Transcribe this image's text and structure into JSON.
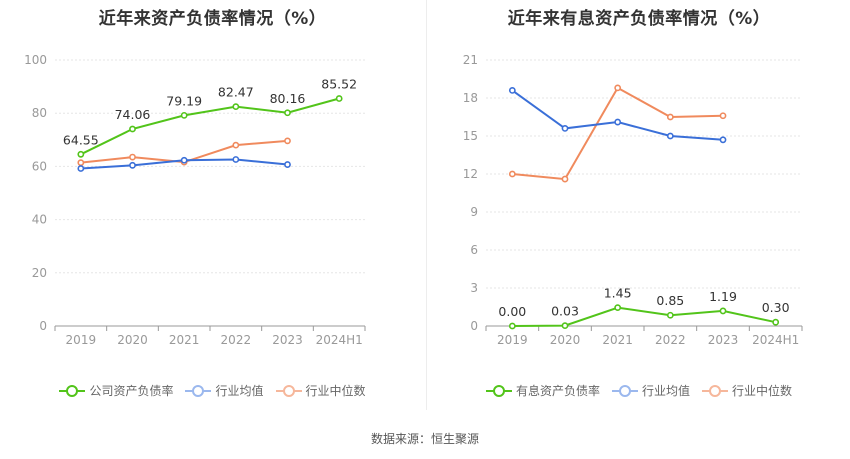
{
  "footer_text": "数据来源：恒生聚源",
  "chart_data": [
    {
      "type": "line",
      "title": "近年来资产负债率情况（%）",
      "categories": [
        "2019",
        "2020",
        "2021",
        "2022",
        "2023",
        "2024H1"
      ],
      "ylim": [
        0,
        100
      ],
      "yticks": [
        "0",
        "20",
        "40",
        "60",
        "80",
        "100"
      ],
      "grid": true,
      "legend_position": "bottom",
      "series": [
        {
          "name": "公司资产负债率",
          "color": "#52c41a",
          "values": [
            64.55,
            74.06,
            79.19,
            82.47,
            80.16,
            85.52
          ],
          "labels": [
            "64.55",
            "74.06",
            "79.19",
            "82.47",
            "80.16",
            "85.52"
          ]
        },
        {
          "name": "行业均值",
          "color": "#3a6fd8",
          "values": [
            59.2,
            60.4,
            62.3,
            62.6,
            60.7,
            null
          ]
        },
        {
          "name": "行业中位数",
          "color": "#f08a5d",
          "values": [
            61.4,
            63.5,
            61.6,
            68.0,
            69.6,
            null
          ]
        }
      ]
    },
    {
      "type": "line",
      "title": "近年来有息资产负债率情况（%）",
      "categories": [
        "2019",
        "2020",
        "2021",
        "2022",
        "2023",
        "2024H1"
      ],
      "ylim": [
        0,
        21
      ],
      "yticks": [
        "0",
        "3",
        "6",
        "9",
        "12",
        "15",
        "18",
        "21"
      ],
      "grid": true,
      "legend_position": "bottom",
      "series": [
        {
          "name": "有息资产负债率",
          "color": "#52c41a",
          "values": [
            0.0,
            0.03,
            1.45,
            0.85,
            1.19,
            0.3
          ],
          "labels": [
            "0.00",
            "0.03",
            "1.45",
            "0.85",
            "1.19",
            "0.30"
          ]
        },
        {
          "name": "行业均值",
          "color": "#3a6fd8",
          "values": [
            18.6,
            15.6,
            16.1,
            15.0,
            14.7,
            null
          ]
        },
        {
          "name": "行业中位数",
          "color": "#f08a5d",
          "values": [
            12.0,
            11.6,
            18.8,
            16.5,
            16.6,
            null
          ]
        }
      ]
    }
  ]
}
